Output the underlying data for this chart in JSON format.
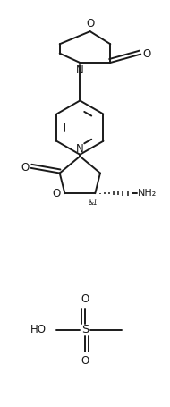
{
  "bg_color": "#ffffff",
  "line_color": "#1a1a1a",
  "line_width": 1.4,
  "font_size": 7.5,
  "figsize": [
    1.9,
    4.55
  ],
  "dpi": 100,
  "xlim": [
    0,
    10
  ],
  "ylim": [
    0,
    24
  ]
}
